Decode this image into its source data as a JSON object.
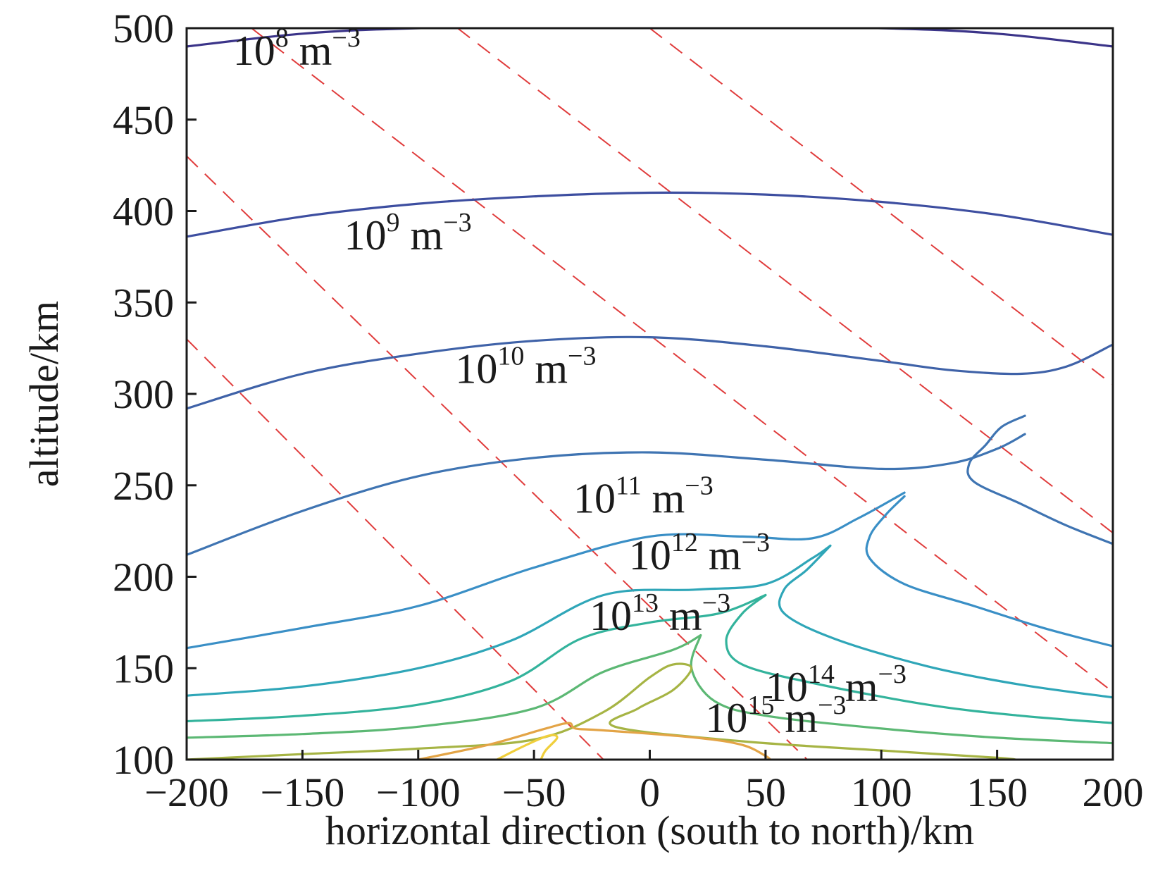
{
  "chart_data": {
    "type": "contour",
    "title": "",
    "xlabel": "horizontal direction (south to north)/km",
    "ylabel": "altitude/km",
    "xlim": [
      -200,
      200
    ],
    "ylim": [
      100,
      500
    ],
    "x_ticks": [
      -200,
      -150,
      -100,
      -50,
      0,
      50,
      100,
      150,
      200
    ],
    "x_tick_labels": [
      "−200",
      "−150",
      "−100",
      "−50",
      "0",
      "50",
      "100",
      "150",
      "200"
    ],
    "y_ticks": [
      100,
      150,
      200,
      250,
      300,
      350,
      400,
      450,
      500
    ],
    "y_tick_labels": [
      "100",
      "150",
      "200",
      "250",
      "300",
      "350",
      "400",
      "450",
      "500"
    ],
    "grid": false,
    "field_lines": {
      "style": "dashed",
      "color": "#e03c3c",
      "lines": [
        [
          [
            -172,
            500
          ],
          [
            200,
            137
          ]
        ],
        [
          [
            -83,
            500
          ],
          [
            200,
            224
          ]
        ],
        [
          [
            0,
            500
          ],
          [
            200,
            305
          ]
        ],
        [
          [
            -200,
            430
          ],
          [
            68,
            100
          ]
        ],
        [
          [
            -200,
            330
          ],
          [
            -20,
            100
          ]
        ]
      ]
    },
    "contours": [
      {
        "label_base": "10",
        "label_exp": "8",
        "label_unit": " m",
        "label_unit_exp": "−3",
        "label_at": [
          -180,
          480
        ],
        "color": "#3b3489",
        "points": [
          [
            -200,
            490
          ],
          [
            -150,
            497
          ],
          [
            -100,
            500
          ],
          [
            0,
            502
          ],
          [
            100,
            500
          ],
          [
            150,
            497
          ],
          [
            200,
            490
          ]
        ]
      },
      {
        "label_base": "10",
        "label_exp": "9",
        "label_unit": " m",
        "label_unit_exp": "−3",
        "label_at": [
          -132,
          379
        ],
        "color": "#3d4ea0",
        "points": [
          [
            -200,
            386
          ],
          [
            -150,
            397
          ],
          [
            -100,
            404
          ],
          [
            -50,
            408
          ],
          [
            0,
            410
          ],
          [
            50,
            409
          ],
          [
            100,
            405
          ],
          [
            150,
            398
          ],
          [
            200,
            387
          ]
        ]
      },
      {
        "label_base": "10",
        "label_exp": "10",
        "label_unit": " m",
        "label_unit_exp": "−3",
        "label_at": [
          -84,
          306
        ],
        "color": "#3f62a8",
        "points": [
          [
            -200,
            292
          ],
          [
            -150,
            311
          ],
          [
            -100,
            322
          ],
          [
            -50,
            329
          ],
          [
            0,
            331
          ],
          [
            50,
            326
          ],
          [
            100,
            318
          ],
          [
            130,
            313
          ],
          [
            160,
            311
          ],
          [
            180,
            315
          ],
          [
            200,
            327
          ]
        ]
      },
      {
        "label_base": "10",
        "label_exp": "11",
        "label_unit": " m",
        "label_unit_exp": "−3",
        "label_at": [
          -33,
          235
        ],
        "color": "#3f74b2",
        "points": [
          [
            -200,
            212
          ],
          [
            -150,
            236
          ],
          [
            -100,
            255
          ],
          [
            -50,
            265
          ],
          [
            0,
            268
          ],
          [
            50,
            264
          ],
          [
            100,
            259
          ],
          [
            130,
            262
          ],
          [
            150,
            270
          ],
          [
            162,
            278
          ]
        ]
      },
      {
        "label_base": "10",
        "label_exp": "11",
        "label_unit": "",
        "label_unit_exp": "",
        "label_at": [
          null,
          null
        ],
        "color": "#3f74b2",
        "points": [
          [
            200,
            218
          ],
          [
            180,
            228
          ],
          [
            160,
            240
          ],
          [
            140,
            252
          ],
          [
            138,
            262
          ],
          [
            145,
            272
          ],
          [
            152,
            282
          ],
          [
            162,
            288
          ]
        ]
      },
      {
        "label_base": "10",
        "label_exp": "12",
        "label_unit": " m",
        "label_unit_exp": "−3",
        "label_at": [
          -9,
          204
        ],
        "color": "#3a8fc6",
        "points": [
          [
            -200,
            161
          ],
          [
            -150,
            172
          ],
          [
            -100,
            184
          ],
          [
            -50,
            205
          ],
          [
            0,
            222
          ],
          [
            40,
            222
          ],
          [
            70,
            221
          ],
          [
            90,
            232
          ],
          [
            110,
            246
          ]
        ]
      },
      {
        "label_base": "10",
        "label_exp": "12",
        "label_unit": "",
        "label_unit_exp": "",
        "label_at": [
          null,
          null
        ],
        "color": "#3a8fc6",
        "points": [
          [
            200,
            162
          ],
          [
            170,
            172
          ],
          [
            140,
            184
          ],
          [
            110,
            196
          ],
          [
            95,
            210
          ],
          [
            95,
            222
          ],
          [
            102,
            234
          ],
          [
            110,
            244
          ]
        ]
      },
      {
        "label_base": "10",
        "label_exp": "13",
        "label_unit": " m",
        "label_unit_exp": "−3",
        "label_at": [
          -26,
          171
        ],
        "color": "#2fa6b8",
        "points": [
          [
            -200,
            135
          ],
          [
            -150,
            140
          ],
          [
            -100,
            150
          ],
          [
            -60,
            165
          ],
          [
            -20,
            190
          ],
          [
            20,
            193
          ],
          [
            50,
            196
          ],
          [
            70,
            210
          ],
          [
            78,
            217
          ]
        ]
      },
      {
        "label_base": "10",
        "label_exp": "13",
        "label_unit": "",
        "label_unit_exp": "",
        "label_at": [
          null,
          null
        ],
        "color": "#2fa6b8",
        "points": [
          [
            200,
            134
          ],
          [
            160,
            141
          ],
          [
            120,
            151
          ],
          [
            80,
            166
          ],
          [
            58,
            180
          ],
          [
            58,
            193
          ],
          [
            68,
            204
          ],
          [
            78,
            217
          ]
        ]
      },
      {
        "label_base": "10",
        "label_exp": "14",
        "label_unit": " m",
        "label_unit_exp": "−3",
        "label_at": [
          50,
          132
        ],
        "color": "#33b39c",
        "points": [
          [
            -200,
            121
          ],
          [
            -150,
            124
          ],
          [
            -100,
            130
          ],
          [
            -60,
            143
          ],
          [
            -30,
            166
          ],
          [
            0,
            175
          ],
          [
            30,
            180
          ],
          [
            50,
            190
          ]
        ]
      },
      {
        "label_base": "10",
        "label_exp": "14",
        "label_unit": "",
        "label_unit_exp": "",
        "label_at": [
          null,
          null
        ],
        "color": "#33b39c",
        "points": [
          [
            200,
            120
          ],
          [
            160,
            124
          ],
          [
            120,
            130
          ],
          [
            70,
            142
          ],
          [
            40,
            152
          ],
          [
            33,
            165
          ],
          [
            40,
            180
          ],
          [
            50,
            190
          ]
        ]
      },
      {
        "label_base": "10",
        "label_exp": "15",
        "label_unit": " m",
        "label_unit_exp": "−3",
        "label_at": [
          24,
          115
        ],
        "color": "#5cb874",
        "points": [
          [
            -200,
            112
          ],
          [
            -150,
            114
          ],
          [
            -100,
            118
          ],
          [
            -50,
            128
          ],
          [
            -20,
            148
          ],
          [
            10,
            160
          ],
          [
            22,
            168
          ]
        ]
      },
      {
        "label_base": "10",
        "label_exp": "15",
        "label_unit": "",
        "label_unit_exp": "",
        "label_at": [
          null,
          null
        ],
        "color": "#5cb874",
        "points": [
          [
            200,
            109
          ],
          [
            150,
            112
          ],
          [
            100,
            117
          ],
          [
            50,
            124
          ],
          [
            28,
            132
          ],
          [
            18,
            150
          ],
          [
            22,
            168
          ]
        ]
      },
      {
        "label_base": "",
        "label_exp": "",
        "label_unit": "",
        "label_unit_exp": "",
        "label_at": [
          null,
          null
        ],
        "color": "#a6b444",
        "points": [
          [
            -200,
            100
          ],
          [
            -150,
            103
          ],
          [
            -100,
            106
          ],
          [
            -50,
            111
          ],
          [
            -20,
            126
          ],
          [
            0,
            145
          ],
          [
            10,
            152
          ],
          [
            18,
            150
          ],
          [
            10,
            138
          ],
          [
            -5,
            128
          ],
          [
            -15,
            118
          ],
          [
            40,
            110
          ],
          [
            100,
            105
          ],
          [
            150,
            101
          ],
          [
            158,
            100
          ]
        ]
      },
      {
        "label_base": "",
        "label_exp": "",
        "label_unit": "",
        "label_unit_exp": "",
        "label_at": [
          null,
          null
        ],
        "color": "#e3a446",
        "points": [
          [
            -100,
            100
          ],
          [
            -70,
            108
          ],
          [
            -45,
            117
          ],
          [
            -35,
            120
          ],
          [
            -32,
            117
          ],
          [
            -20,
            116
          ],
          [
            20,
            112
          ],
          [
            40,
            108
          ],
          [
            50,
            102
          ],
          [
            52,
            100
          ]
        ]
      },
      {
        "label_base": "",
        "label_exp": "",
        "label_unit": "",
        "label_unit_exp": "",
        "label_at": [
          null,
          null
        ],
        "color": "#f0cf3c",
        "points": [
          [
            -66,
            100
          ],
          [
            -55,
            107
          ],
          [
            -44,
            113
          ],
          [
            -40,
            112
          ],
          [
            -45,
            105
          ],
          [
            -47,
            100
          ]
        ]
      }
    ]
  }
}
